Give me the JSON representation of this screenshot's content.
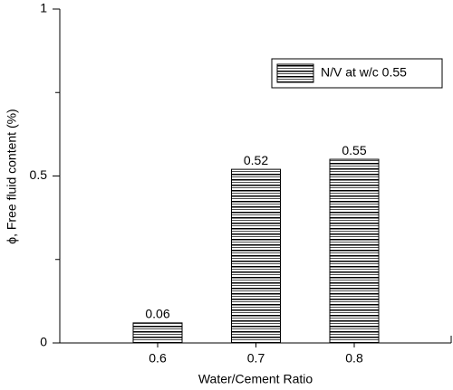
{
  "chart_data": {
    "type": "bar",
    "xlabel": "Water/Cement Ratio",
    "ylabel": "ϕ, Free fluid content (%)",
    "categories": [
      "0.6",
      "0.7",
      "0.8"
    ],
    "series": [
      {
        "name": "N/V at w/c 0.55",
        "color": "#000000",
        "values": [
          0.06,
          0.52,
          0.55
        ]
      }
    ],
    "ylim": [
      0,
      1
    ],
    "yticks": [
      0,
      0.5,
      1
    ],
    "yminorticks": [
      0.25,
      0.75
    ],
    "legend": "upper right",
    "grid": false
  }
}
